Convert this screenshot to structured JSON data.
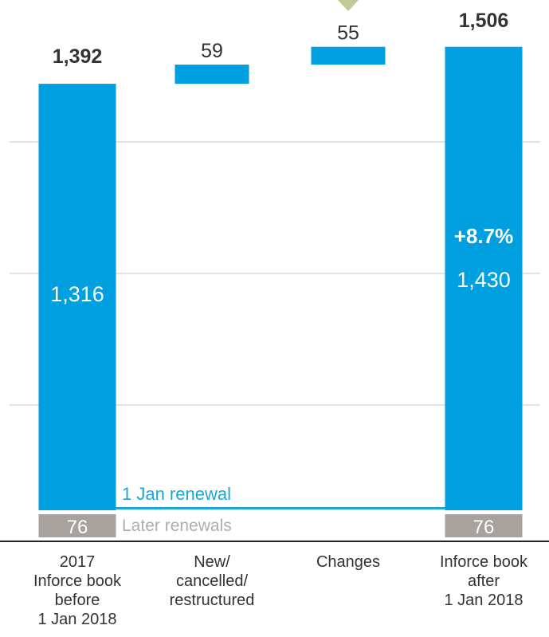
{
  "colors": {
    "bar": "#009fdf",
    "later": "#a7a29d",
    "later_label": "#b3ada8",
    "grid": "#c8c8c8",
    "axis": "#222222",
    "text": "#333333",
    "marker": "#c2c99a",
    "renewal_line": "#1aa5dc"
  },
  "chart_data": {
    "type": "bar",
    "subtype": "waterfall",
    "categories": [
      "2017\nInforce book\nbefore\n1 Jan 2018",
      "New/\ncancelled/\nrestructured",
      "Changes",
      "Inforce book\nafter\n1 Jan 2018"
    ],
    "series": [
      {
        "name": "1 Jan renewal",
        "values": [
          1316,
          59,
          55,
          1430
        ],
        "labels": [
          "1,316",
          "59",
          "55",
          "1,430"
        ]
      },
      {
        "name": "Later renewals",
        "values": [
          76,
          null,
          null,
          76
        ],
        "labels": [
          "76",
          "",
          "",
          "76"
        ]
      }
    ],
    "totals": [
      1392,
      null,
      null,
      1506
    ],
    "total_labels": [
      "1,392",
      "",
      "",
      "1,506"
    ],
    "waterfall_base": [
      0,
      1316,
      1375,
      0
    ],
    "annotations": {
      "growth": "+8.7%"
    },
    "legend": {
      "renewal": "1 Jan renewal",
      "later": "Later renewals"
    },
    "ylim": [
      0,
      1520
    ],
    "grid": true
  }
}
